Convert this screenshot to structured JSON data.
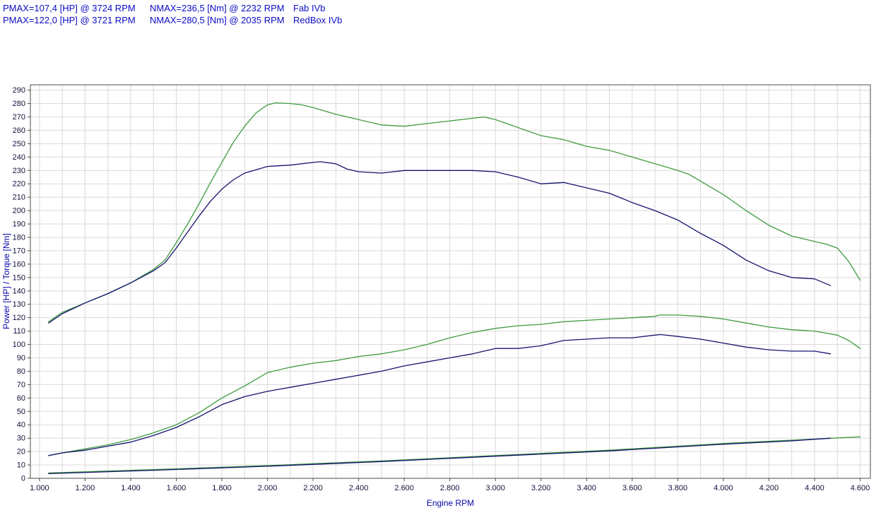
{
  "header": {
    "lines": [
      {
        "pmax": "PMAX=107,4 [HP] @ 3724 RPM",
        "nmax": "NMAX=236,5 [Nm] @ 2232 RPM",
        "name": "Fab IVb"
      },
      {
        "pmax": "PMAX=122,0 [HP] @ 3721 RPM",
        "nmax": "NMAX=280,5 [Nm] @ 2035 RPM",
        "name": "RedBox IVb"
      }
    ]
  },
  "chart_data": {
    "type": "line",
    "title": "",
    "xlabel": "Engine RPM",
    "ylabel": "Power [HP] / Torque [Nm]",
    "xlim": [
      960,
      4645
    ],
    "ylim": [
      0,
      294
    ],
    "grid": true,
    "legend_position": "none (run names shown in header)",
    "colors": {
      "tuned": "#3f9b3f",
      "stock": "#14146e",
      "grid": "#d9d9d9",
      "frame": "#4a4a4a",
      "tick_text": "#10103c",
      "axis_title": "#0707a8",
      "header_text": "#0b0bc4"
    },
    "x_ticks": {
      "values": [
        1000,
        1200,
        1400,
        1600,
        1800,
        2000,
        2200,
        2400,
        2600,
        2800,
        3000,
        3200,
        3400,
        3600,
        3800,
        4000,
        4200,
        4400,
        4600
      ],
      "labels": [
        "1.000",
        "1.200",
        "1.400",
        "1.600",
        "1.800",
        "2.000",
        "2.200",
        "2.400",
        "2.600",
        "2.800",
        "3.000",
        "3.200",
        "3.400",
        "3.600",
        "3.800",
        "4.000",
        "4.200",
        "4.400",
        "4.600"
      ]
    },
    "y_ticks": {
      "min": 0,
      "max": 290,
      "step": 10
    },
    "minor_x_grid_step": 100,
    "series": [
      {
        "name": "torque-redbox-tuned-nm",
        "color": "#3f9b3f",
        "peak": "280,5 Nm @ 2035 RPM",
        "x": [
          1040,
          1100,
          1200,
          1300,
          1400,
          1500,
          1550,
          1600,
          1650,
          1700,
          1750,
          1800,
          1850,
          1900,
          1950,
          2000,
          2035,
          2100,
          2150,
          2200,
          2300,
          2400,
          2500,
          2600,
          2700,
          2800,
          2900,
          2950,
          3000,
          3100,
          3200,
          3300,
          3400,
          3500,
          3600,
          3700,
          3800,
          3850,
          3900,
          4000,
          4100,
          4200,
          4300,
          4400,
          4450,
          4500,
          4550,
          4600
        ],
        "y": [
          117,
          124,
          131,
          138,
          146,
          156,
          163,
          176,
          190,
          205,
          221,
          236,
          251,
          263,
          273,
          279,
          280.5,
          280,
          279,
          277,
          272,
          268,
          264,
          263,
          265,
          267,
          269,
          270,
          268,
          262,
          256,
          253,
          248,
          245,
          240,
          235,
          230,
          227,
          222,
          212,
          200,
          189,
          181,
          177,
          175,
          172,
          162,
          148
        ]
      },
      {
        "name": "torque-fab-stock-nm",
        "color": "#14146e",
        "peak": "236,5 Nm @ 2232 RPM",
        "x": [
          1040,
          1100,
          1200,
          1300,
          1400,
          1500,
          1550,
          1600,
          1650,
          1700,
          1750,
          1800,
          1850,
          1900,
          2000,
          2100,
          2200,
          2232,
          2300,
          2350,
          2400,
          2500,
          2600,
          2700,
          2800,
          2900,
          3000,
          3100,
          3200,
          3300,
          3400,
          3500,
          3600,
          3700,
          3800,
          3900,
          4000,
          4100,
          4200,
          4300,
          4400,
          4470
        ],
        "y": [
          116,
          123,
          131,
          138,
          146,
          155,
          161,
          172,
          184,
          196,
          207,
          216,
          223,
          228,
          233,
          234,
          236,
          236.5,
          235,
          231,
          229,
          228,
          230,
          230,
          230,
          230,
          229,
          225,
          220,
          221,
          217,
          213,
          206,
          200,
          193,
          183,
          174,
          163,
          155,
          150,
          149,
          144
        ]
      },
      {
        "name": "power-redbox-tuned-hp",
        "color": "#3f9b3f",
        "peak": "122,0 HP @ 3721 RPM",
        "x": [
          1040,
          1100,
          1200,
          1300,
          1400,
          1500,
          1600,
          1700,
          1800,
          1900,
          2000,
          2100,
          2200,
          2300,
          2400,
          2500,
          2600,
          2700,
          2800,
          2900,
          3000,
          3100,
          3200,
          3300,
          3400,
          3500,
          3600,
          3700,
          3721,
          3800,
          3900,
          4000,
          4100,
          4200,
          4300,
          4400,
          4500,
          4550,
          4600
        ],
        "y": [
          17,
          19,
          22,
          25,
          29,
          34,
          40,
          49,
          60,
          69,
          79,
          83,
          86,
          88,
          91,
          93,
          96,
          100,
          105,
          109,
          112,
          114,
          115,
          117,
          118,
          119,
          120,
          121,
          122,
          122,
          121,
          119,
          116,
          113,
          111,
          110,
          107,
          103,
          97
        ]
      },
      {
        "name": "power-fab-stock-hp",
        "color": "#14146e",
        "peak": "107,4 HP @ 3724 RPM",
        "x": [
          1040,
          1100,
          1200,
          1300,
          1400,
          1500,
          1600,
          1700,
          1800,
          1900,
          2000,
          2100,
          2200,
          2300,
          2400,
          2500,
          2600,
          2700,
          2800,
          2900,
          3000,
          3100,
          3200,
          3300,
          3400,
          3500,
          3600,
          3700,
          3724,
          3800,
          3900,
          4000,
          4100,
          4200,
          4300,
          4400,
          4470
        ],
        "y": [
          17,
          19,
          21,
          24,
          27,
          32,
          38,
          46,
          55,
          61,
          65,
          68,
          71,
          74,
          77,
          80,
          84,
          87,
          90,
          93,
          97,
          97,
          99,
          103,
          104,
          105,
          105,
          107,
          107.4,
          106,
          104,
          101,
          98,
          96,
          95,
          95,
          93
        ]
      },
      {
        "name": "aux-baseline-redbox",
        "color": "#3f9b3f",
        "x": [
          1040,
          1500,
          2000,
          2500,
          3000,
          3500,
          4000,
          4300,
          4600
        ],
        "y": [
          4,
          6.5,
          9.5,
          13,
          17,
          21,
          26,
          28.5,
          31
        ]
      },
      {
        "name": "aux-baseline-fab",
        "color": "#14146e",
        "x": [
          1040,
          1500,
          2000,
          2500,
          3000,
          3500,
          4000,
          4300,
          4470
        ],
        "y": [
          3.5,
          6,
          9,
          12.5,
          16.5,
          20.5,
          25.5,
          28,
          30
        ]
      }
    ]
  }
}
